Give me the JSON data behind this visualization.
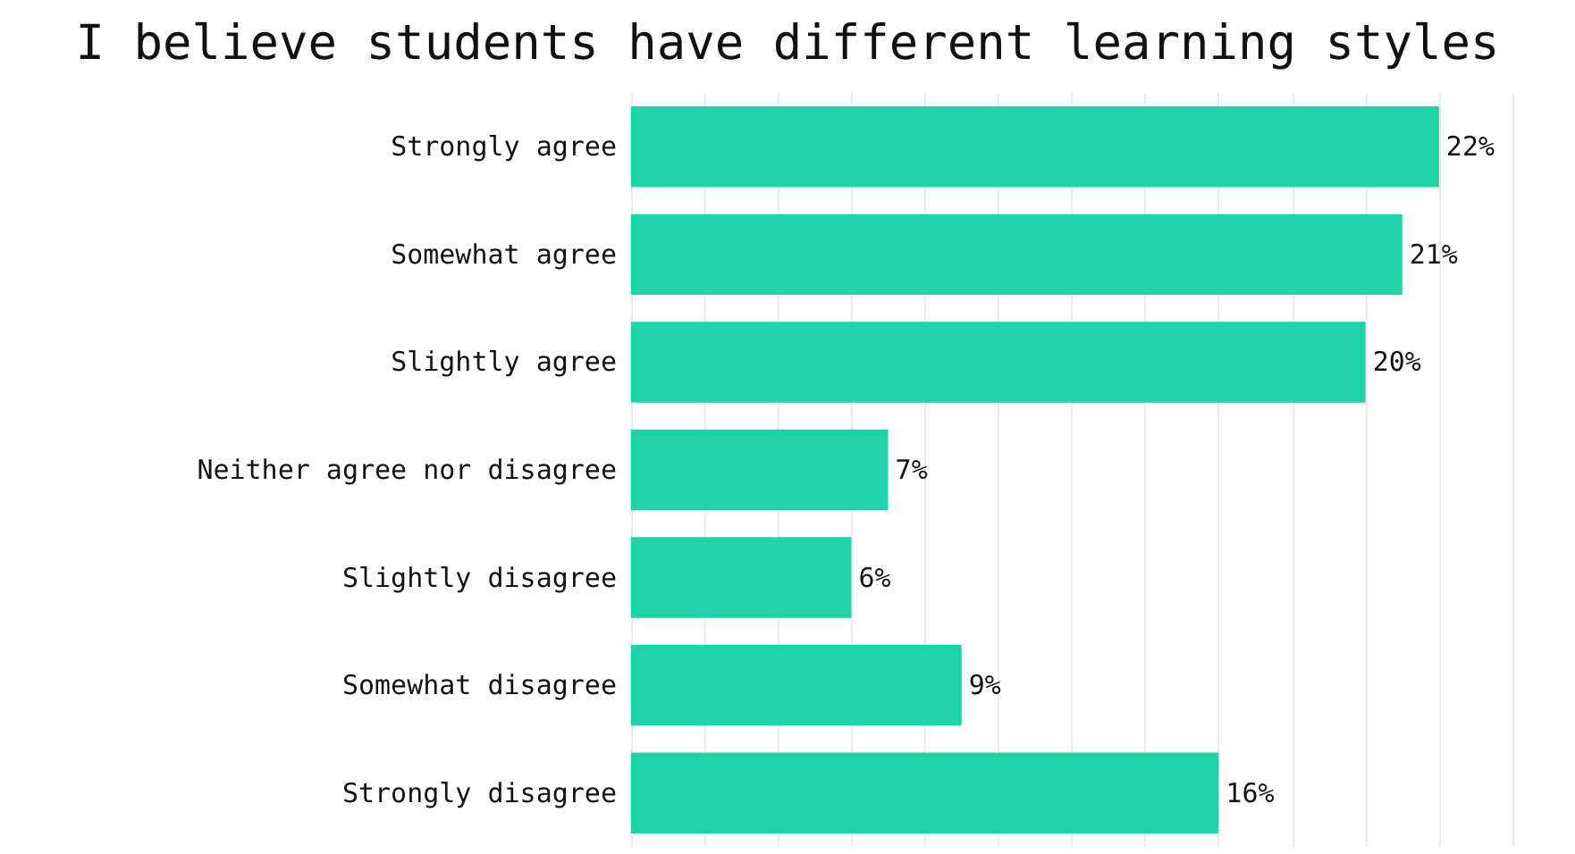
{
  "chart_data": {
    "type": "bar",
    "orientation": "horizontal",
    "title": "I believe students have different learning styles",
    "categories": [
      "Strongly agree",
      "Somewhat agree",
      "Slightly agree",
      "Neither agree nor disagree",
      "Slightly disagree",
      "Somewhat disagree",
      "Strongly disagree"
    ],
    "values": [
      22,
      21,
      20,
      7,
      6,
      9,
      16
    ],
    "value_labels": [
      "22%",
      "21%",
      "20%",
      "7%",
      "6%",
      "9%",
      "16%"
    ],
    "color": "#1fd3a8",
    "xlim": [
      0,
      24
    ],
    "xticks": [
      {
        "value": 0,
        "label": null
      },
      {
        "value": 2,
        "label": null
      },
      {
        "value": 4,
        "label": null
      },
      {
        "value": 6,
        "label": null
      },
      {
        "value": 8,
        "label": null
      },
      {
        "value": 10,
        "label": null
      },
      {
        "value": 12,
        "label": null
      },
      {
        "value": 14,
        "label": null
      },
      {
        "value": 16,
        "label": null
      },
      {
        "value": 18,
        "label": null
      },
      {
        "value": 20,
        "label": null
      },
      {
        "value": 22,
        "label": null
      },
      {
        "value": 24,
        "label": null
      }
    ],
    "grid": "x",
    "tick_labels": "y"
  }
}
